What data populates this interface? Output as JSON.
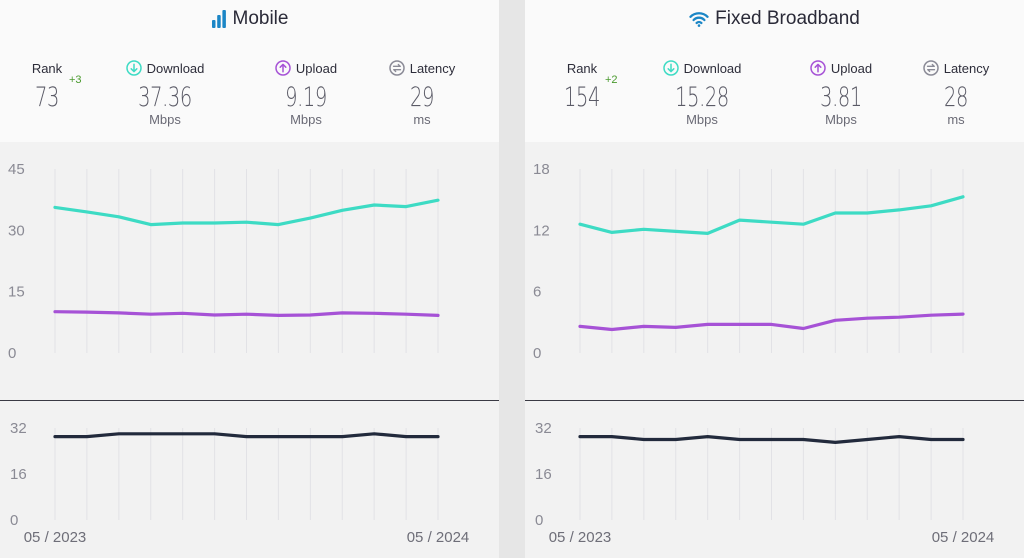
{
  "colors": {
    "download": "#3ddbc4",
    "upload": "#a652d6",
    "latency": "#222a3c",
    "title_icon": "#1b86c6",
    "rank_change": "#4a9a2e"
  },
  "panels": [
    {
      "id": "mobile",
      "title": "Mobile",
      "title_icon": "signal-bars-icon",
      "rank": {
        "label": "Rank",
        "value": "73",
        "change": "+3"
      },
      "download": {
        "label": "Download",
        "value": "37.36",
        "unit": "Mbps",
        "icon": "download-arrow-icon"
      },
      "upload": {
        "label": "Upload",
        "value": "9.19",
        "unit": "Mbps",
        "icon": "upload-arrow-icon"
      },
      "latency": {
        "label": "Latency",
        "value": "29",
        "unit": "ms",
        "icon": "latency-arrows-icon"
      },
      "x_labels": {
        "start": "05 / 2023",
        "end": "05 / 2024"
      }
    },
    {
      "id": "fixed",
      "title": "Fixed Broadband",
      "title_icon": "wifi-icon",
      "rank": {
        "label": "Rank",
        "value": "154",
        "change": "+2"
      },
      "download": {
        "label": "Download",
        "value": "15.28",
        "unit": "Mbps",
        "icon": "download-arrow-icon"
      },
      "upload": {
        "label": "Upload",
        "value": "3.81",
        "unit": "Mbps",
        "icon": "upload-arrow-icon"
      },
      "latency": {
        "label": "Latency",
        "value": "28",
        "unit": "ms",
        "icon": "latency-arrows-icon"
      },
      "x_labels": {
        "start": "05 / 2023",
        "end": "05 / 2024"
      }
    }
  ],
  "chart_data": [
    {
      "type": "line",
      "panel": "Mobile",
      "chart": "speed",
      "x": [
        "05/2023",
        "06/2023",
        "07/2023",
        "08/2023",
        "09/2023",
        "10/2023",
        "11/2023",
        "12/2023",
        "01/2024",
        "02/2024",
        "03/2024",
        "04/2024",
        "05/2024"
      ],
      "ylim": [
        0,
        45
      ],
      "yticks": [
        0,
        15,
        30,
        45
      ],
      "xlabel": "",
      "ylabel": "",
      "title": "",
      "grid": true,
      "series": [
        {
          "key": "download",
          "values": [
            35.6,
            34.5,
            33.3,
            31.4,
            31.8,
            31.8,
            32.0,
            31.4,
            33.0,
            34.9,
            36.2,
            35.8,
            37.36
          ]
        },
        {
          "key": "upload",
          "values": [
            10.1,
            10.0,
            9.8,
            9.5,
            9.7,
            9.3,
            9.5,
            9.2,
            9.3,
            9.8,
            9.7,
            9.5,
            9.19
          ]
        }
      ]
    },
    {
      "type": "line",
      "panel": "Mobile",
      "chart": "latency",
      "x": [
        "05/2023",
        "06/2023",
        "07/2023",
        "08/2023",
        "09/2023",
        "10/2023",
        "11/2023",
        "12/2023",
        "01/2024",
        "02/2024",
        "03/2024",
        "04/2024",
        "05/2024"
      ],
      "ylim": [
        0,
        32
      ],
      "yticks": [
        0,
        16,
        32
      ],
      "xlabel": "",
      "ylabel": "",
      "title": "",
      "grid": true,
      "series": [
        {
          "key": "latency",
          "values": [
            29,
            29,
            30,
            30,
            30,
            30,
            29,
            29,
            29,
            29,
            30,
            29,
            29
          ]
        }
      ]
    },
    {
      "type": "line",
      "panel": "Fixed Broadband",
      "chart": "speed",
      "x": [
        "05/2023",
        "06/2023",
        "07/2023",
        "08/2023",
        "09/2023",
        "10/2023",
        "11/2023",
        "12/2023",
        "01/2024",
        "02/2024",
        "03/2024",
        "04/2024",
        "05/2024"
      ],
      "ylim": [
        0,
        18
      ],
      "yticks": [
        0,
        6,
        12,
        18
      ],
      "xlabel": "",
      "ylabel": "",
      "title": "",
      "grid": true,
      "series": [
        {
          "key": "download",
          "values": [
            12.6,
            11.8,
            12.1,
            11.9,
            11.7,
            13.0,
            12.8,
            12.6,
            13.7,
            13.7,
            14.0,
            14.4,
            15.28
          ]
        },
        {
          "key": "upload",
          "values": [
            2.6,
            2.3,
            2.6,
            2.5,
            2.8,
            2.8,
            2.8,
            2.4,
            3.2,
            3.4,
            3.5,
            3.7,
            3.81
          ]
        }
      ]
    },
    {
      "type": "line",
      "panel": "Fixed Broadband",
      "chart": "latency",
      "x": [
        "05/2023",
        "06/2023",
        "07/2023",
        "08/2023",
        "09/2023",
        "10/2023",
        "11/2023",
        "12/2023",
        "01/2024",
        "02/2024",
        "03/2024",
        "04/2024",
        "05/2024"
      ],
      "ylim": [
        0,
        32
      ],
      "yticks": [
        0,
        16,
        32
      ],
      "xlabel": "",
      "ylabel": "",
      "title": "",
      "grid": true,
      "series": [
        {
          "key": "latency",
          "values": [
            29,
            29,
            28,
            28,
            29,
            28,
            28,
            28,
            27,
            28,
            29,
            28,
            28
          ]
        }
      ]
    }
  ]
}
